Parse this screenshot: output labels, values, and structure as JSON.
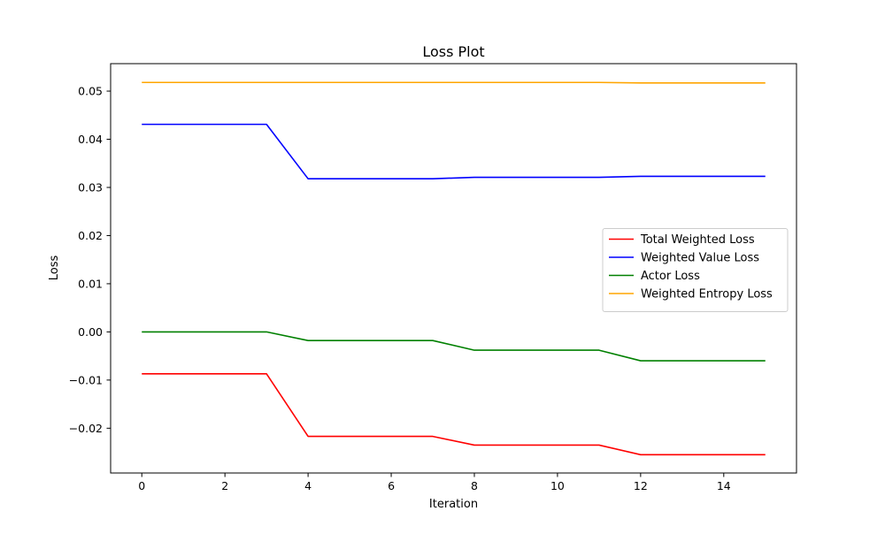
{
  "chart_data": {
    "type": "line",
    "title": "Loss Plot",
    "xlabel": "Iteration",
    "ylabel": "Loss",
    "xlim": [
      -0.75,
      15.75
    ],
    "ylim": [
      -0.0293,
      0.0557
    ],
    "xticks": [
      0,
      2,
      4,
      6,
      8,
      10,
      12,
      14
    ],
    "xtick_labels": [
      "0",
      "2",
      "4",
      "6",
      "8",
      "10",
      "12",
      "14"
    ],
    "yticks": [
      -0.02,
      -0.01,
      0.0,
      0.01,
      0.02,
      0.03,
      0.04,
      0.05
    ],
    "ytick_labels": [
      "−0.02",
      "−0.01",
      "0.00",
      "0.01",
      "0.02",
      "0.03",
      "0.04",
      "0.05"
    ],
    "grid": false,
    "legend_position": "center-right",
    "x": [
      0,
      1,
      2,
      3,
      4,
      5,
      6,
      7,
      8,
      9,
      10,
      11,
      12,
      13,
      14,
      15
    ],
    "series": [
      {
        "name": "Total Weighted Loss",
        "color": "#ff0000",
        "values": [
          -0.0087,
          -0.0087,
          -0.0087,
          -0.0087,
          -0.0217,
          -0.0217,
          -0.0217,
          -0.0217,
          -0.0235,
          -0.0235,
          -0.0235,
          -0.0235,
          -0.0255,
          -0.0255,
          -0.0255,
          -0.0255
        ]
      },
      {
        "name": "Weighted Value Loss",
        "color": "#0000ff",
        "values": [
          0.0431,
          0.0431,
          0.0431,
          0.0431,
          0.0318,
          0.0318,
          0.0318,
          0.0318,
          0.0321,
          0.0321,
          0.0321,
          0.0321,
          0.0323,
          0.0323,
          0.0323,
          0.0323
        ]
      },
      {
        "name": "Actor Loss",
        "color": "#008000",
        "values": [
          0.0,
          0.0,
          0.0,
          0.0,
          -0.0018,
          -0.0018,
          -0.0018,
          -0.0018,
          -0.0038,
          -0.0038,
          -0.0038,
          -0.0038,
          -0.006,
          -0.006,
          -0.006,
          -0.006
        ]
      },
      {
        "name": "Weighted Entropy Loss",
        "color": "#ffa500",
        "values": [
          0.0518,
          0.0518,
          0.0518,
          0.0518,
          0.0518,
          0.0518,
          0.0518,
          0.0518,
          0.0518,
          0.0518,
          0.0518,
          0.0518,
          0.0517,
          0.0517,
          0.0517,
          0.0517
        ]
      }
    ]
  }
}
